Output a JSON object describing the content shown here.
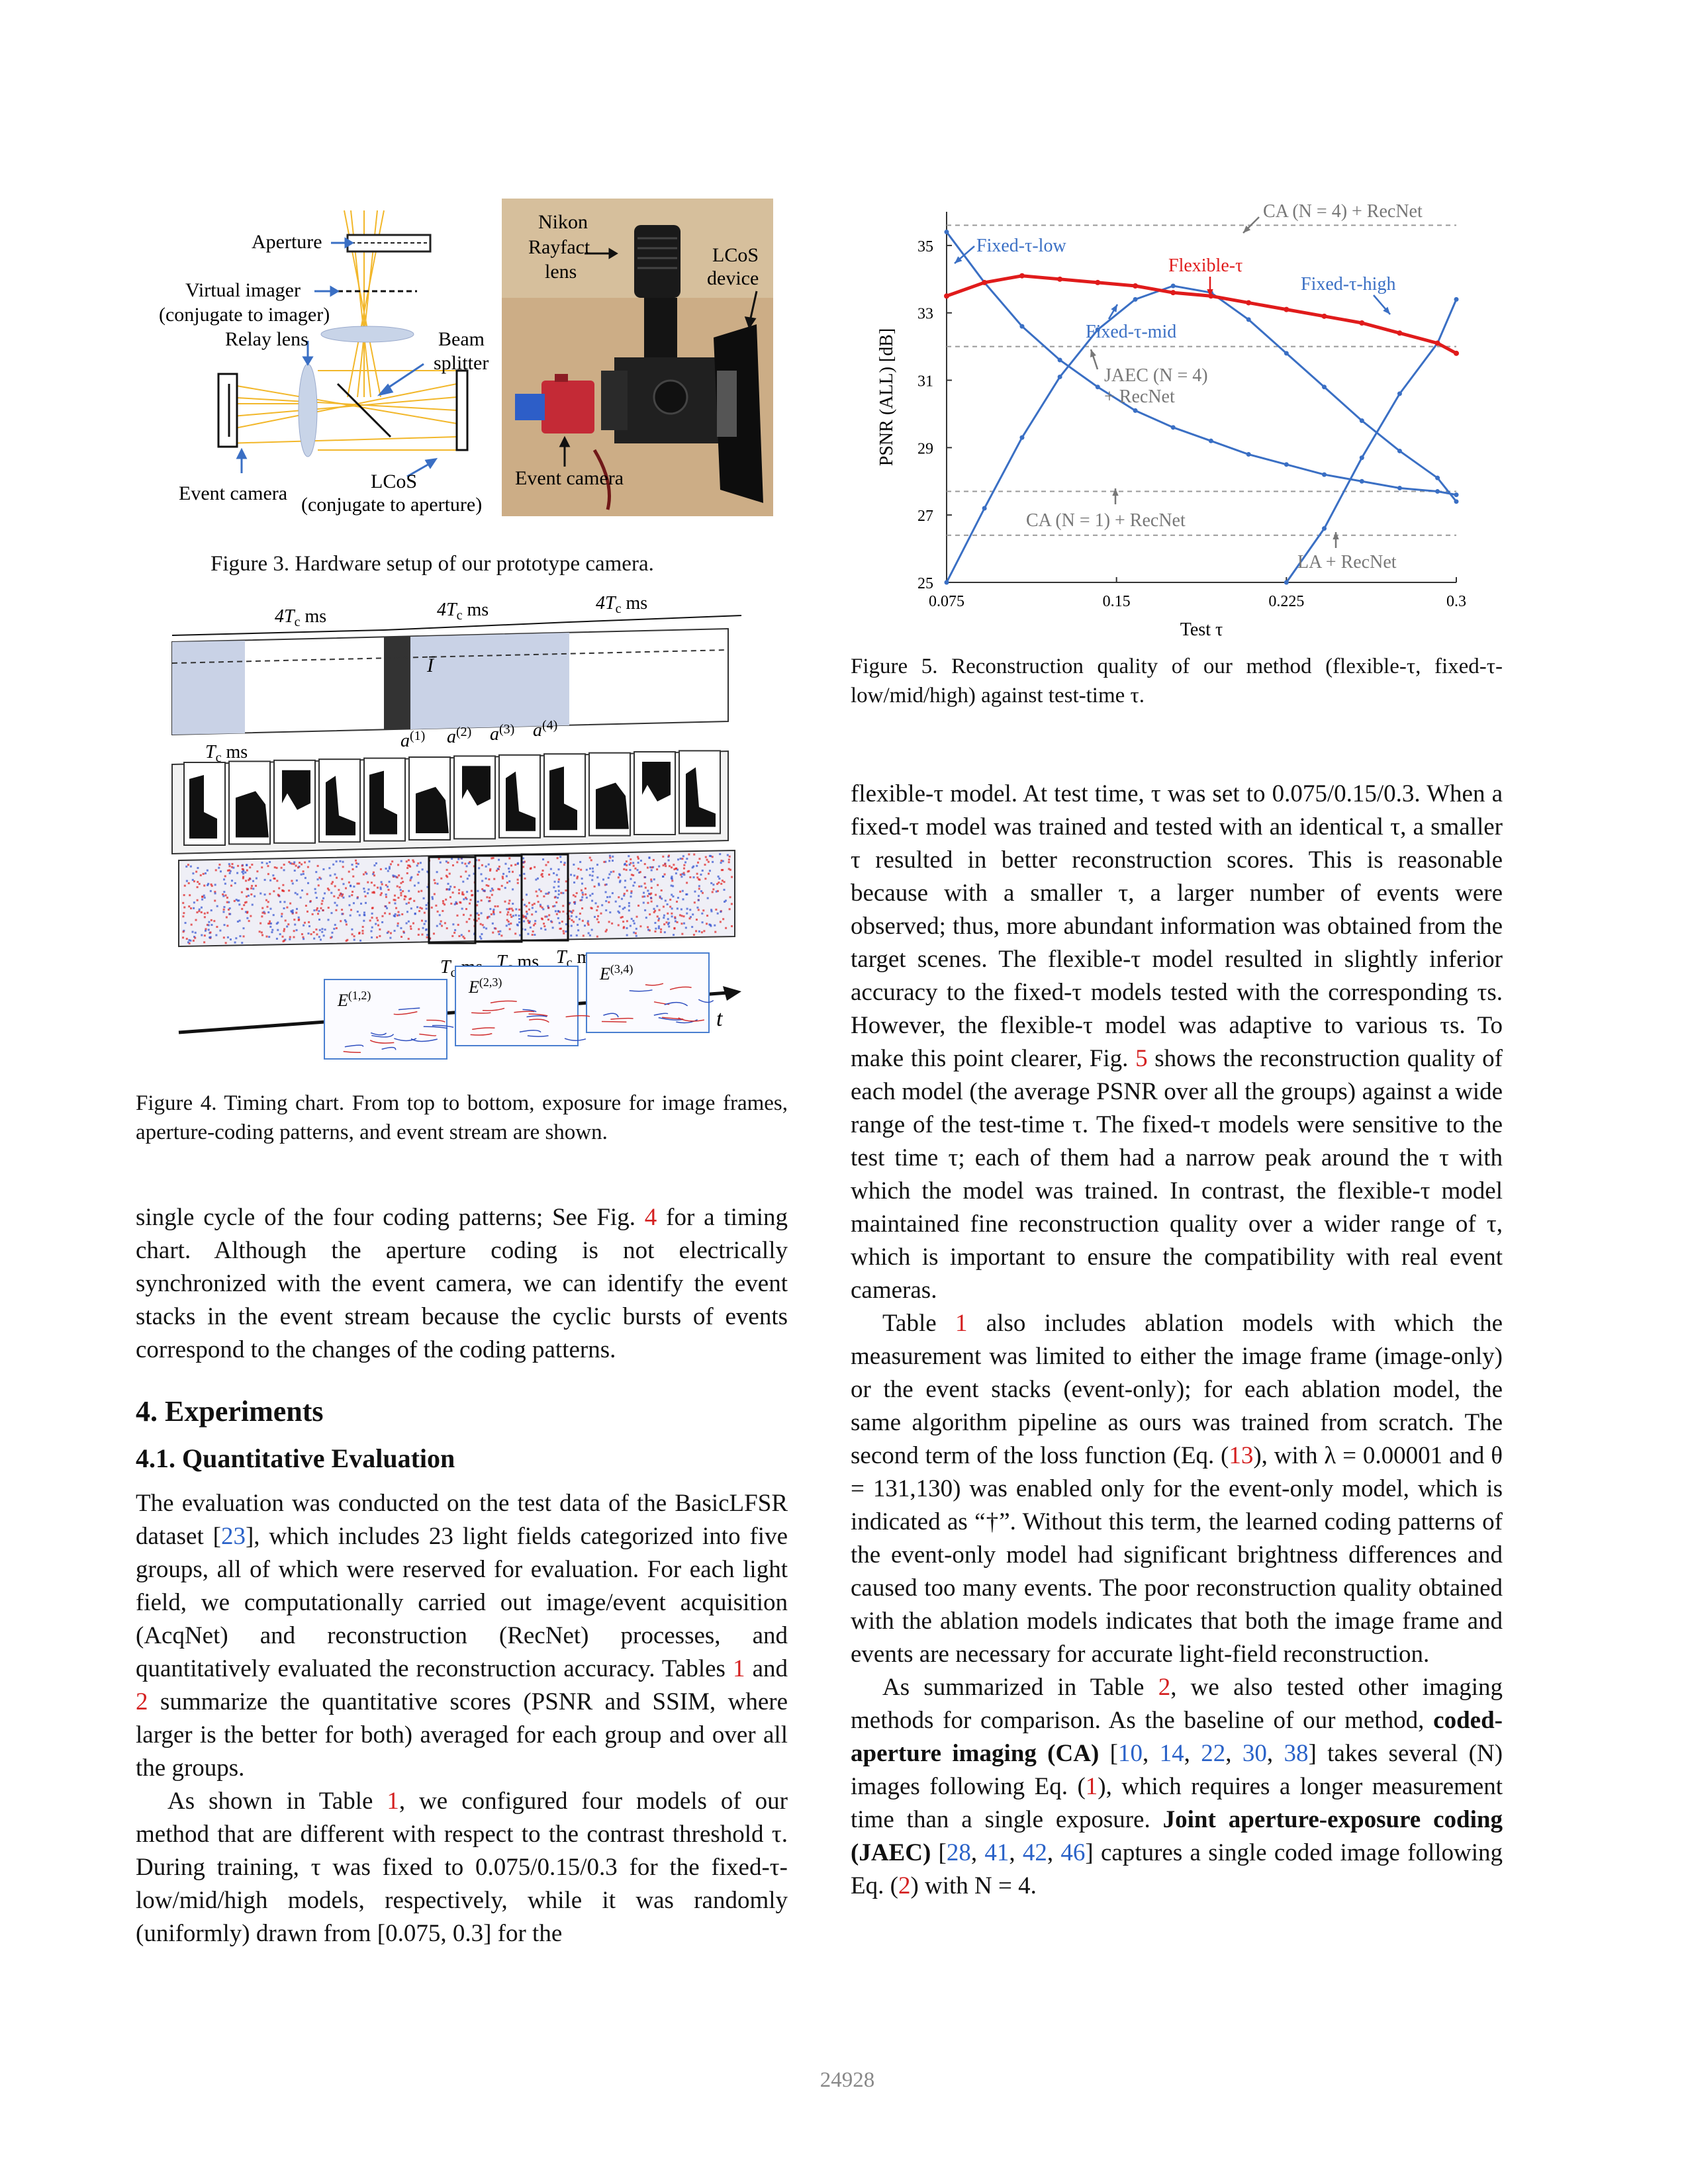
{
  "fig3": {
    "labels": {
      "aperture": "Aperture",
      "virtual_imager": "Virtual imager",
      "virtual_imager_note": "(conjugate to imager)",
      "relay_lens": "Relay lens",
      "beam_splitter_1": "Beam",
      "beam_splitter_2": "splitter",
      "event_camera": "Event camera",
      "lcos": "LCoS",
      "lcos_note": "(conjugate to aperture)",
      "nikon_1": "Nikon",
      "nikon_2": "Rayfact",
      "nikon_3": "lens",
      "lcos_device_1": "LCoS",
      "lcos_device_2": "device",
      "event_camera_photo": "Event camera"
    },
    "caption": "Figure 3. Hardware setup of our prototype camera."
  },
  "fig4": {
    "labels": {
      "period": "4T",
      "period_sub": "c",
      "unit": " ms",
      "tc": "T",
      "tc_sub": "c",
      "ibar": "Ī",
      "a": "a",
      "a_sups": [
        "(1)",
        "(2)",
        "(3)",
        "(4)"
      ],
      "e": "E",
      "e_sups": [
        "(1,2)",
        "(2,3)",
        "(3,4)"
      ],
      "t": "t"
    },
    "caption": "Figure 4. Timing chart. From top to bottom, exposure for image frames, aperture-coding patterns, and event stream are shown."
  },
  "chart_data": {
    "type": "line",
    "xlabel": "Test τ",
    "ylabel": "PSNR (ALL) [dB]",
    "xlim": [
      0.075,
      0.3
    ],
    "ylim": [
      25,
      36
    ],
    "xticks": [
      "0.075",
      "0.15",
      "0.225",
      "0.3"
    ],
    "yticks": [
      "25",
      "27",
      "29",
      "31",
      "33",
      "35"
    ],
    "x": [
      0.075,
      0.0917,
      0.1083,
      0.125,
      0.1417,
      0.1583,
      0.175,
      0.1917,
      0.2083,
      0.225,
      0.2417,
      0.2583,
      0.275,
      0.2917,
      0.3
    ],
    "series": [
      {
        "name": "Fixed-τ-low",
        "color": "#3a6fc4",
        "values": [
          35.4,
          33.9,
          32.6,
          31.6,
          30.8,
          30.1,
          29.6,
          29.2,
          28.8,
          28.5,
          28.2,
          28.0,
          27.8,
          27.7,
          27.6
        ]
      },
      {
        "name": "Fixed-τ-mid",
        "color": "#3a6fc4",
        "values": [
          24.8,
          27.2,
          29.3,
          31.1,
          32.5,
          33.4,
          33.8,
          33.6,
          32.8,
          31.8,
          30.8,
          29.8,
          28.9,
          28.1,
          27.4
        ]
      },
      {
        "name": "Fixed-τ-high",
        "color": "#3a6fc4",
        "values": [
          null,
          null,
          null,
          null,
          null,
          null,
          null,
          null,
          null,
          24.6,
          26.6,
          28.7,
          30.6,
          32.1,
          33.4
        ]
      },
      {
        "name": "Flexible-τ",
        "color": "#e01b1b",
        "values": [
          33.5,
          33.9,
          34.1,
          34.0,
          33.9,
          33.8,
          33.6,
          33.5,
          33.3,
          33.1,
          32.9,
          32.7,
          32.4,
          32.1,
          31.8
        ]
      }
    ],
    "series_labels": [
      "Fixed-τ-low",
      "Flexible-τ",
      "Fixed-τ-mid",
      "Fixed-τ-high"
    ],
    "reference_lines": [
      {
        "name": "CA (N = 4) + RecNet",
        "value": 35.6
      },
      {
        "name": "JAEC (N = 4) + RecNet",
        "value": 32.0
      },
      {
        "name": "CA (N = 1) + RecNet",
        "value": 27.7
      },
      {
        "name": "LA + RecNet",
        "value": 26.4
      }
    ],
    "ref_labels": {
      "ca4": "CA (N = 4) + RecNet",
      "jaec_1": "JAEC (N = 4)",
      "jaec_2": "+ RecNet",
      "ca1": "CA (N = 1) + RecNet",
      "la": "LA + RecNet"
    },
    "grid": false,
    "legend": "none"
  },
  "fig5": {
    "caption": "Figure 5. Reconstruction quality of our method (flexible-τ, fixed-τ-low/mid/high) against test-time τ."
  },
  "left_col": {
    "p1": "single cycle of the four coding patterns; See Fig. 4 for a timing chart. Although the aperture coding is not electrically synchronized with the event camera, we can identify the event stacks in the event stream because the cyclic bursts of events correspond to the changes of the coding patterns.",
    "p1_parts": {
      "a": "single cycle of the four coding patterns; See Fig. ",
      "fig_ref": "4",
      "b": " for a timing chart. Although the aperture coding is not electrically synchronized with the event camera, we can identify the event stacks in the event stream because the cyclic bursts of events correspond to the changes of the coding patterns."
    },
    "h_experiments": "4. Experiments",
    "h_quant": "4.1. Quantitative Evaluation",
    "p2_parts": {
      "a": "The evaluation was conducted on the test data of the BasicLFSR dataset [",
      "cite": "23",
      "b": "], which includes 23 light fields categorized into five groups, all of which were reserved for evaluation. For each light field, we computationally carried out image/event acquisition (AcqNet) and reconstruction (RecNet) processes, and quantitatively evaluated the reconstruction accuracy. Tables ",
      "t1": "1",
      "c": " and ",
      "t2": "2",
      "d": " summarize the quantitative scores (PSNR and SSIM, where larger is the better for both) averaged for each group and over all the groups."
    },
    "p3_parts": {
      "a": "As shown in Table ",
      "t1": "1",
      "b": ", we configured four models of our method that are different with respect to the contrast threshold τ. During training, τ was fixed to 0.075/0.15/0.3 for the fixed-τ-low/mid/high models, respectively, while it was randomly (uniformly) drawn from [0.075, 0.3] for the"
    }
  },
  "right_col": {
    "p1": "flexible-τ model. At test time, τ was set to 0.075/0.15/0.3. When a fixed-τ model was trained and tested with an identical τ, a smaller τ resulted in better reconstruction scores. This is reasonable because with a smaller τ, a larger number of events were observed; thus, more abundant information was obtained from the target scenes. The flexible-τ model resulted in slightly inferior accuracy to the fixed-τ models tested with the corresponding τs. However, the flexible-τ model was adaptive to various τs. To make this point clearer, Fig. 5 shows the reconstruction quality of each model (the average PSNR over all the groups) against a wide range of the test-time τ. The fixed-τ models were sensitive to the test time τ; each of them had a narrow peak around the τ with which the model was trained. In contrast, the flexible-τ model maintained fine reconstruction quality over a wider range of τ, which is important to ensure the compatibility with real event cameras.",
    "p1_parts": {
      "a": "flexible-τ model. At test time, τ was set to 0.075/0.15/0.3. When a fixed-τ model was trained and tested with an identical τ, a smaller τ resulted in better reconstruction scores. This is reasonable because with a smaller τ, a larger number of events were observed; thus, more abundant information was obtained from the target scenes. The flexible-τ model resulted in slightly inferior accuracy to the fixed-τ models tested with the corresponding τs. However, the flexible-τ model was adaptive to various τs. To make this point clearer, Fig. ",
      "fig_ref": "5",
      "b": " shows the reconstruction quality of each model (the average PSNR over all the groups) against a wide range of the test-time τ. The fixed-τ models were sensitive to the test time τ; each of them had a narrow peak around the τ with which the model was trained. In contrast, the flexible-τ model maintained fine reconstruction quality over a wider range of τ, which is important to ensure the compatibility with real event cameras."
    },
    "p2_parts": {
      "a": "Table ",
      "t1": "1",
      "b": " also includes ablation models with which the measurement was limited to either the image frame (image-only) or the event stacks (event-only); for each ablation model, the same algorithm pipeline as ours was trained from scratch. The second term of the loss function (Eq. (",
      "eq": "13",
      "c": "), with λ = 0.00001 and θ = 131,130) was enabled only for the event-only model, which is indicated as “†”. Without this term, the learned coding patterns of the event-only model had significant brightness differences and caused too many events. The poor reconstruction quality obtained with the ablation models indicates that both the image frame and events are necessary for accurate light-field reconstruction."
    },
    "p3_parts": {
      "a": "As summarized in Table ",
      "t2": "2",
      "b": ", we also tested other imaging methods for comparison. As the baseline of our method, ",
      "bold1": "coded-aperture imaging (CA)",
      "c": " [",
      "c1": "10",
      "c2": "14",
      "c3": "22",
      "c4": "30",
      "c5": "38",
      "d": "] takes several (N) images following Eq. (",
      "eq1": "1",
      "e": "), which requires a longer measurement time than a single exposure. ",
      "bold2": "Joint aperture-exposure coding (JAEC)",
      "f": " [",
      "c6": "28",
      "c7": "41",
      "c8": "42",
      "c9": "46",
      "g": "] captures a single coded image following Eq. (",
      "eq2": "2",
      "h": ") with N = 4."
    }
  },
  "page_number": "24928"
}
